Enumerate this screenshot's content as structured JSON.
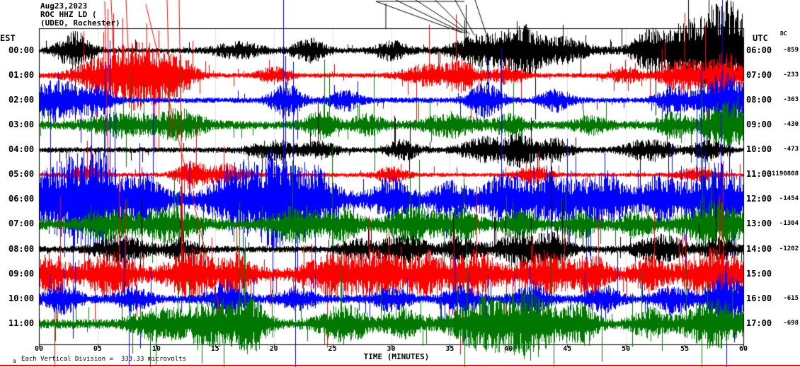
{
  "header": {
    "date": "Aug23,2023",
    "station": "ROC HHZ LD (",
    "location": "(UDEO, Rochester)"
  },
  "axes": {
    "left_label": "EST",
    "right_label": "UTC",
    "dc_label": "DC",
    "x_label": "TIME (MINUTES)",
    "x_ticks": [
      "00",
      "05",
      "10",
      "15",
      "20",
      "25",
      "30",
      "35",
      "40",
      "45",
      "50",
      "55",
      "60"
    ],
    "footnote": "Each Vertical Division =  333.33 microvolts",
    "footnote_mark": "a"
  },
  "chart_data": {
    "type": "line",
    "title": "ROC HHZ LD (UDEO, Rochester) helicorder record, Aug23,2023",
    "xlabel": "TIME (MINUTES)",
    "x_range_minutes": [
      0,
      60
    ],
    "minutes_per_row": 60,
    "vertical_division_microvolts": 333.33,
    "trace_color_cycle": [
      "black",
      "red",
      "blue",
      "green"
    ],
    "colors": {
      "black": "#000000",
      "red": "#ff0000",
      "blue": "#0000ff",
      "green": "#007700"
    },
    "rows": [
      {
        "est": "00:00",
        "utc": "06:00",
        "dc": "-859",
        "color": "black",
        "base": 4,
        "spike": 0.02,
        "bursts": [
          [
            3,
            1,
            25
          ],
          [
            17,
            1.5,
            10
          ],
          [
            23,
            1,
            16
          ],
          [
            30,
            1,
            12
          ],
          [
            38,
            2,
            22
          ],
          [
            41,
            1,
            28
          ],
          [
            44,
            2,
            18
          ],
          [
            52,
            1,
            22
          ],
          [
            56,
            2.5,
            40
          ],
          [
            59,
            1.5,
            48
          ]
        ]
      },
      {
        "est": "01:00",
        "utc": "07:00",
        "dc": "-233",
        "color": "red",
        "base": 3.5,
        "spike": 0.03,
        "bursts": [
          [
            6,
            2,
            28
          ],
          [
            9,
            1.5,
            38
          ],
          [
            12,
            1,
            22
          ],
          [
            20,
            1,
            10
          ],
          [
            33,
            1.5,
            14
          ],
          [
            36,
            1,
            20
          ],
          [
            40,
            1,
            12
          ],
          [
            50,
            1,
            10
          ],
          [
            55,
            1.5,
            22
          ],
          [
            58.5,
            1,
            30
          ]
        ]
      },
      {
        "est": "02:00",
        "utc": "08:00",
        "dc": "-363",
        "color": "blue",
        "base": 4,
        "spike": 0.02,
        "bursts": [
          [
            1.5,
            1.5,
            28
          ],
          [
            5,
            1,
            18
          ],
          [
            21,
            1,
            22
          ],
          [
            26,
            1,
            14
          ],
          [
            38,
            1,
            22
          ],
          [
            44,
            1,
            14
          ],
          [
            54,
            1,
            18
          ],
          [
            58.5,
            1.5,
            38
          ]
        ]
      },
      {
        "est": "03:00",
        "utc": "09:00",
        "dc": "-430",
        "color": "green",
        "base": 6,
        "spike": 0.02,
        "bursts": [
          [
            7,
            2,
            14
          ],
          [
            12,
            1.5,
            18
          ],
          [
            24,
            1,
            16
          ],
          [
            28,
            1,
            12
          ],
          [
            35,
            1.5,
            14
          ],
          [
            40,
            1,
            12
          ],
          [
            47,
            1,
            10
          ],
          [
            54,
            1,
            14
          ],
          [
            58.5,
            1.5,
            32
          ]
        ]
      },
      {
        "est": "04:00",
        "utc": "10:00",
        "dc": "-473",
        "color": "black",
        "base": 4,
        "spike": 0.015,
        "bursts": [
          [
            20,
            1.5,
            12
          ],
          [
            24,
            1,
            10
          ],
          [
            31,
            1,
            12
          ],
          [
            38,
            1.5,
            16
          ],
          [
            41,
            1,
            20
          ],
          [
            44,
            1,
            14
          ],
          [
            52,
            1.5,
            14
          ],
          [
            57,
            1,
            12
          ]
        ]
      },
      {
        "est": "05:00",
        "utc": "11:00",
        "dc": "-1190808",
        "color": "red",
        "base": 3,
        "spike": 0.02,
        "bursts": [
          [
            4,
            1,
            10
          ],
          [
            13,
            1,
            18
          ],
          [
            16,
            1,
            14
          ],
          [
            30,
            1,
            10
          ],
          [
            42,
            1,
            12
          ],
          [
            56,
            1,
            10
          ]
        ]
      },
      {
        "est": "06:00",
        "utc": "12:00",
        "dc": "-1454",
        "color": "blue",
        "base": 12,
        "spike": 0.03,
        "bursts": [
          [
            2,
            2,
            42
          ],
          [
            5,
            1.5,
            52
          ],
          [
            9,
            1,
            28
          ],
          [
            17,
            1.5,
            46
          ],
          [
            20,
            1,
            52
          ],
          [
            23,
            1.5,
            42
          ],
          [
            30,
            1,
            24
          ],
          [
            35,
            1,
            20
          ],
          [
            40,
            1.5,
            32
          ],
          [
            44,
            1,
            28
          ],
          [
            48,
            1.5,
            32
          ],
          [
            53,
            1,
            28
          ],
          [
            58,
            1.8,
            42
          ]
        ]
      },
      {
        "est": "07:00",
        "utc": "13:00",
        "dc": "-1304",
        "color": "green",
        "base": 8,
        "spike": 0.02,
        "bursts": [
          [
            6,
            1.5,
            18
          ],
          [
            11,
            1.5,
            22
          ],
          [
            22,
            1.5,
            22
          ],
          [
            26,
            1,
            18
          ],
          [
            32,
            1.5,
            22
          ],
          [
            36,
            1,
            18
          ],
          [
            41,
            1,
            16
          ],
          [
            46,
            1,
            14
          ],
          [
            51,
            1,
            14
          ],
          [
            57.5,
            1.8,
            28
          ]
        ]
      },
      {
        "est": "08:00",
        "utc": "14:00",
        "dc": "-1202",
        "color": "black",
        "base": 5,
        "spike": 0.02,
        "bursts": [
          [
            7,
            1.5,
            18
          ],
          [
            12,
            1,
            14
          ],
          [
            27,
            1,
            12
          ],
          [
            31,
            1.5,
            18
          ],
          [
            36,
            1,
            16
          ],
          [
            41,
            1.5,
            22
          ],
          [
            44,
            1,
            18
          ],
          [
            53,
            1.5,
            18
          ],
          [
            58,
            1,
            14
          ]
        ]
      },
      {
        "est": "09:00",
        "utc": "15:00",
        "dc": "",
        "color": "red",
        "base": 9,
        "spike": 0.03,
        "bursts": [
          [
            1,
            1,
            22
          ],
          [
            6,
            1.5,
            26
          ],
          [
            13,
            1.5,
            30
          ],
          [
            17,
            1,
            22
          ],
          [
            25,
            1.5,
            26
          ],
          [
            29,
            1.5,
            30
          ],
          [
            33,
            1,
            26
          ],
          [
            37,
            1.5,
            26
          ],
          [
            43,
            1.5,
            26
          ],
          [
            47,
            1,
            22
          ],
          [
            52,
            1,
            18
          ],
          [
            57.5,
            1.8,
            30
          ]
        ]
      },
      {
        "est": "10:00",
        "utc": "16:00",
        "dc": "-615",
        "color": "blue",
        "base": 6,
        "spike": 0.025,
        "bursts": [
          [
            2,
            1,
            18
          ],
          [
            8,
            1,
            14
          ],
          [
            16,
            1,
            22
          ],
          [
            22,
            1,
            14
          ],
          [
            30,
            1,
            14
          ],
          [
            36,
            1,
            16
          ],
          [
            42,
            1,
            18
          ],
          [
            48,
            1,
            16
          ],
          [
            54,
            1,
            18
          ],
          [
            58.5,
            1.2,
            36
          ]
        ]
      },
      {
        "est": "11:00",
        "utc": "17:00",
        "dc": "-698",
        "color": "green",
        "base": 7,
        "spike": 0.025,
        "bursts": [
          [
            10,
            1.5,
            18
          ],
          [
            15,
            2,
            30
          ],
          [
            18,
            1,
            26
          ],
          [
            26,
            1.5,
            22
          ],
          [
            31,
            1,
            18
          ],
          [
            38,
            2,
            34
          ],
          [
            42,
            1.5,
            40
          ],
          [
            46,
            1,
            26
          ],
          [
            52,
            1,
            18
          ],
          [
            57.5,
            1.8,
            30
          ]
        ]
      }
    ]
  }
}
